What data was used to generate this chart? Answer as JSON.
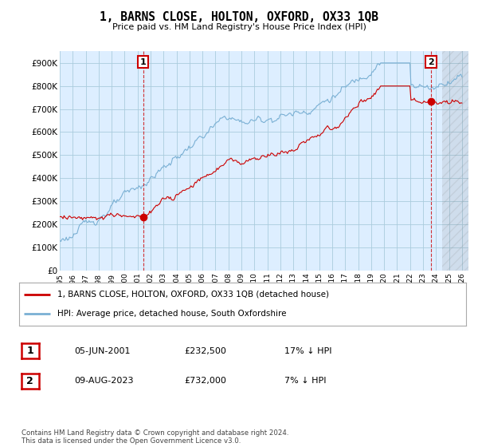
{
  "title": "1, BARNS CLOSE, HOLTON, OXFORD, OX33 1QB",
  "subtitle": "Price paid vs. HM Land Registry's House Price Index (HPI)",
  "ylabel_ticks": [
    "£0",
    "£100K",
    "£200K",
    "£300K",
    "£400K",
    "£500K",
    "£600K",
    "£700K",
    "£800K",
    "£900K"
  ],
  "ytick_values": [
    0,
    100000,
    200000,
    300000,
    400000,
    500000,
    600000,
    700000,
    800000,
    900000
  ],
  "ylim": [
    0,
    950000
  ],
  "xlim_start": 1995.0,
  "xlim_end": 2026.5,
  "legend_line1": "1, BARNS CLOSE, HOLTON, OXFORD, OX33 1QB (detached house)",
  "legend_line2": "HPI: Average price, detached house, South Oxfordshire",
  "sale1_label": "1",
  "sale1_date": "05-JUN-2001",
  "sale1_price": "£232,500",
  "sale1_hpi": "17% ↓ HPI",
  "sale1_x": 2001.43,
  "sale1_y": 232500,
  "sale2_label": "2",
  "sale2_date": "09-AUG-2023",
  "sale2_price": "£732,000",
  "sale2_hpi": "7% ↓ HPI",
  "sale2_x": 2023.61,
  "sale2_y": 732000,
  "line_color_red": "#cc0000",
  "line_color_blue": "#7ab0d4",
  "background_color": "#ffffff",
  "plot_bg_color": "#ddeeff",
  "grid_color": "#aaccdd",
  "footer_text": "Contains HM Land Registry data © Crown copyright and database right 2024.\nThis data is licensed under the Open Government Licence v3.0.",
  "x_ticks": [
    1995,
    1996,
    1997,
    1998,
    1999,
    2000,
    2001,
    2002,
    2003,
    2004,
    2005,
    2006,
    2007,
    2008,
    2009,
    2010,
    2011,
    2012,
    2013,
    2014,
    2015,
    2016,
    2017,
    2018,
    2019,
    2020,
    2021,
    2022,
    2023,
    2024,
    2025,
    2026
  ],
  "hatch_start": 2024.5,
  "noise_scale_blue": 6000,
  "noise_scale_red": 5000
}
